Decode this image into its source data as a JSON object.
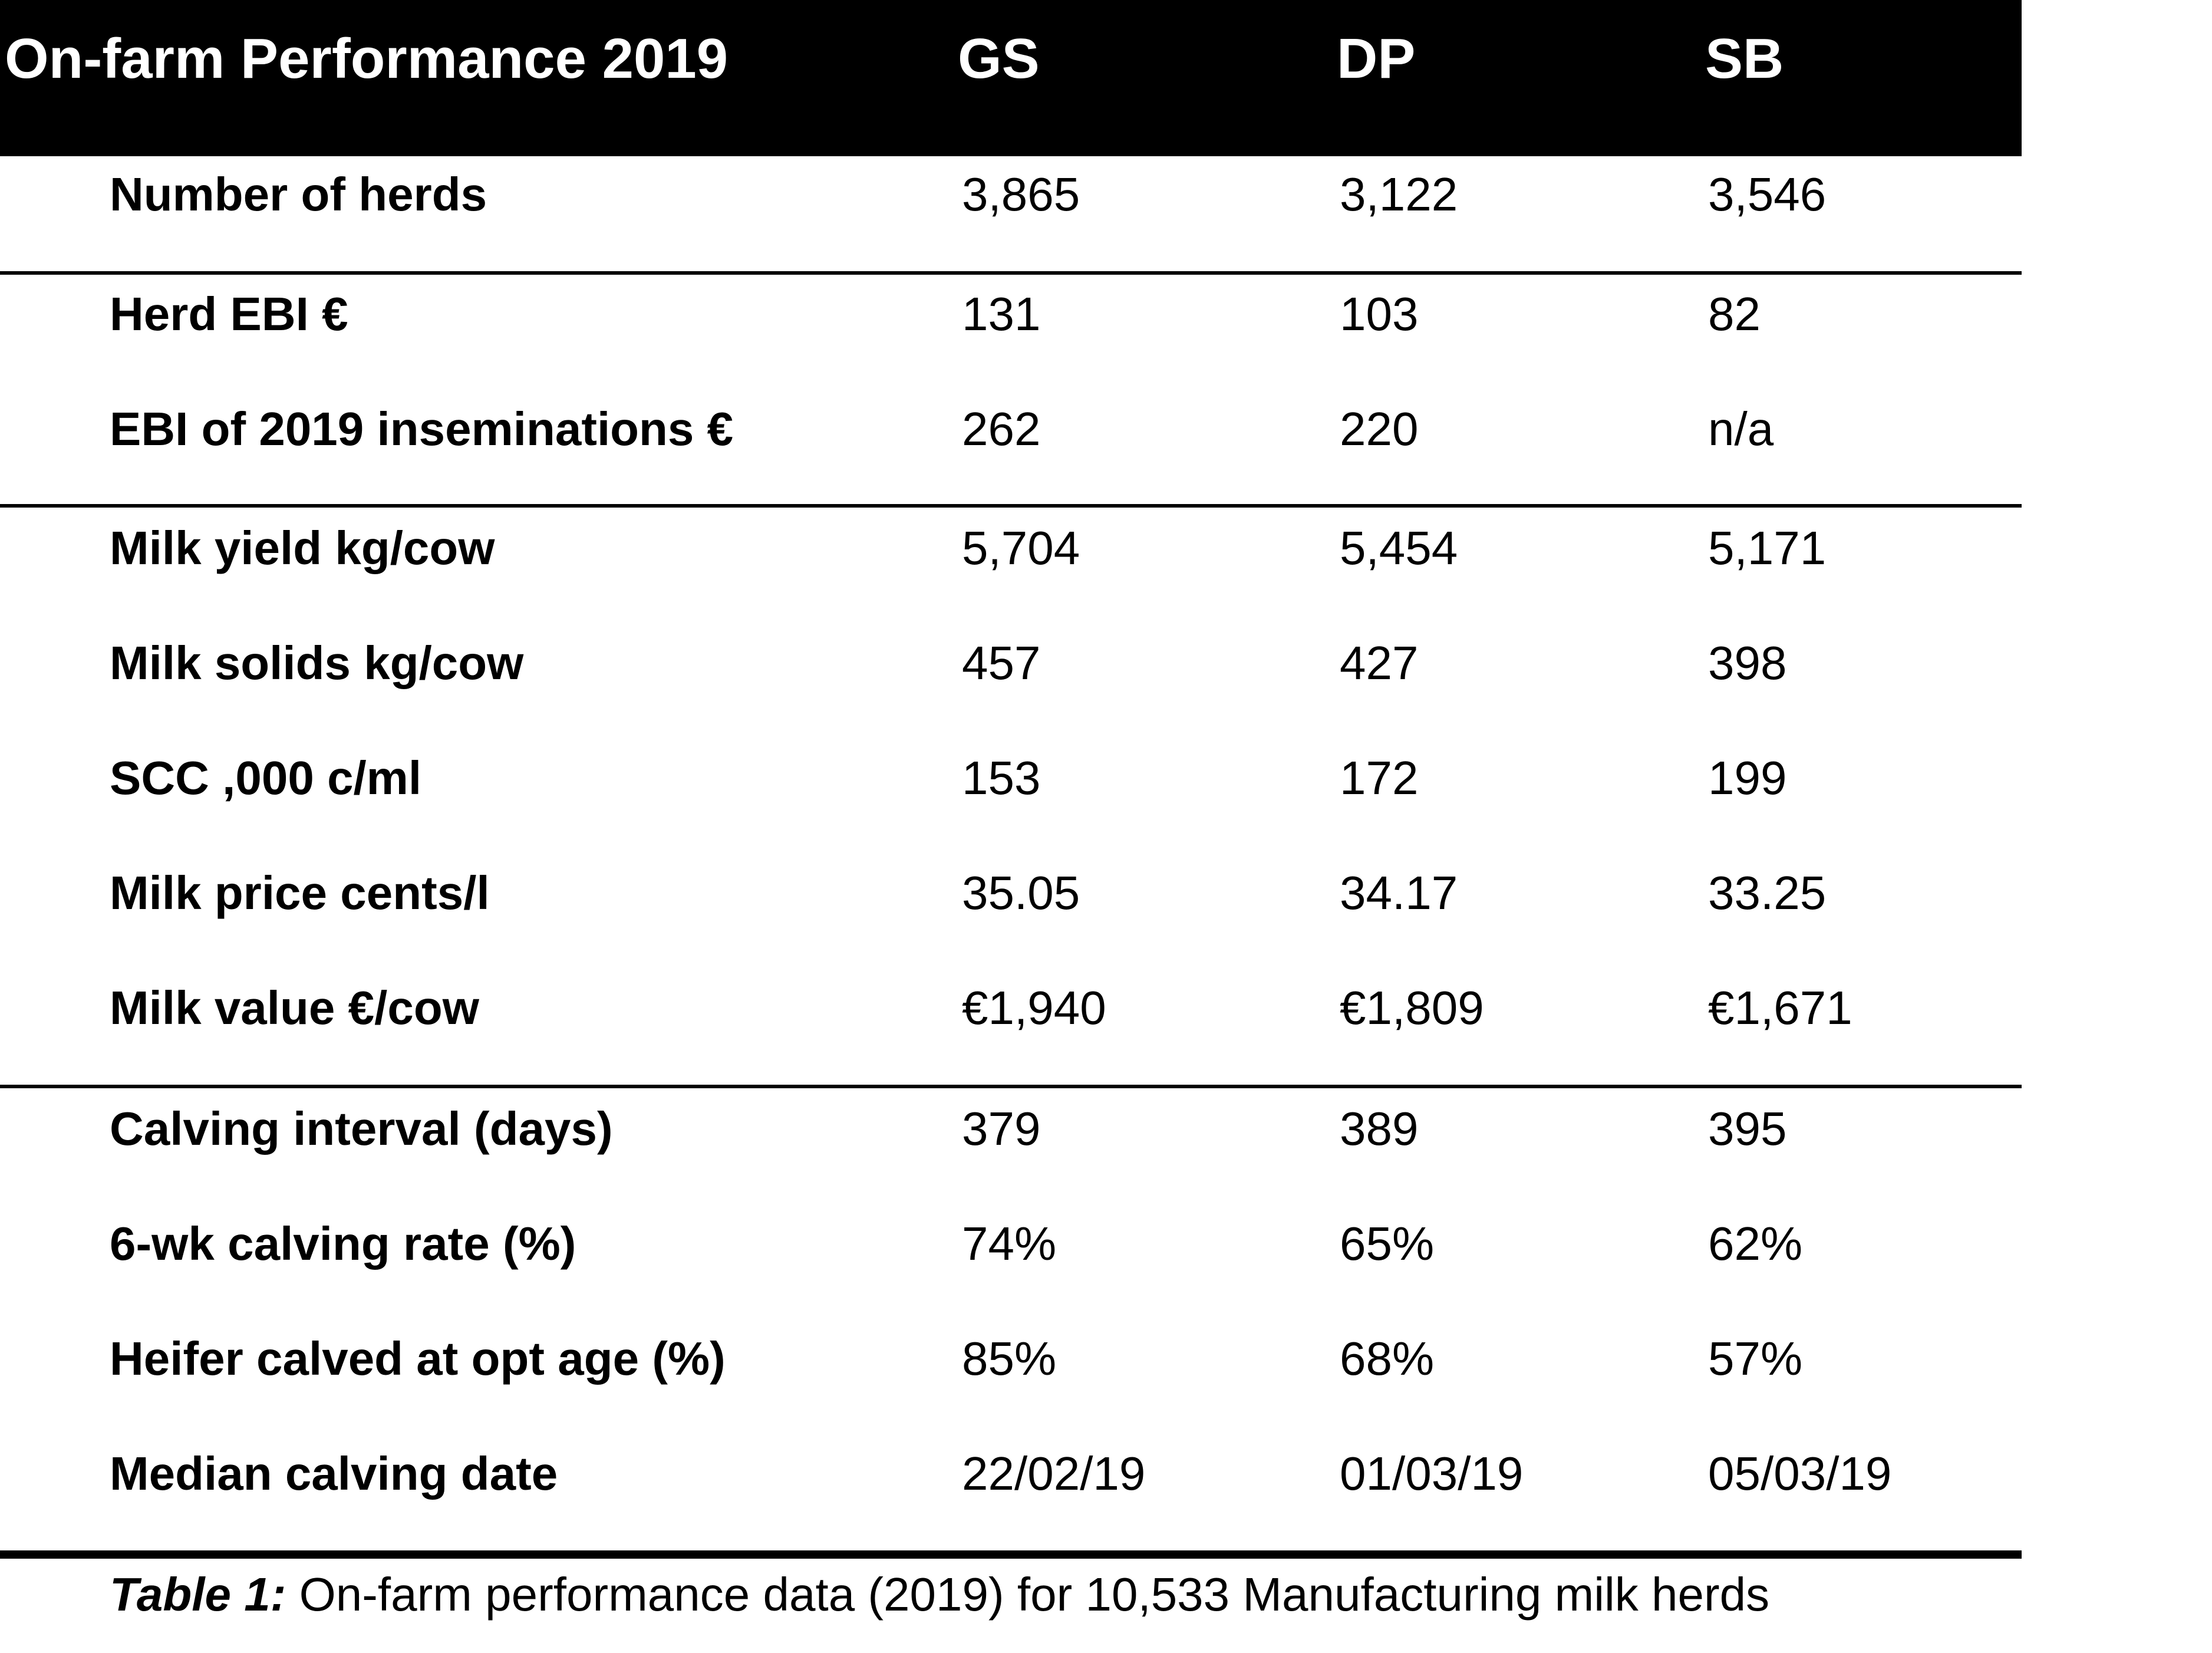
{
  "table": {
    "header": {
      "title": "On-farm Performance 2019",
      "columns": [
        "GS",
        "DP",
        "SB"
      ]
    },
    "rows": [
      {
        "label": "Number of herds",
        "gs": "3,865",
        "dp": "3,122",
        "sb": "3,546"
      },
      {
        "label": "Herd EBI €",
        "gs": "131",
        "dp": "103",
        "sb": "82"
      },
      {
        "label": "EBI of 2019 inseminations €",
        "gs": "262",
        "dp": "220",
        "sb": "n/a"
      },
      {
        "label": "Milk yield kg/cow",
        "gs": "5,704",
        "dp": "5,454",
        "sb": "5,171"
      },
      {
        "label": "Milk solids kg/cow",
        "gs": "457",
        "dp": "427",
        "sb": "398"
      },
      {
        "label": "SCC ,000 c/ml",
        "gs": "153",
        "dp": "172",
        "sb": "199"
      },
      {
        "label": "Milk price cents/l",
        "gs": "35.05",
        "dp": "34.17",
        "sb": "33.25"
      },
      {
        "label": "Milk value €/cow",
        "gs": "€1,940",
        "dp": "€1,809",
        "sb": "€1,671"
      },
      {
        "label": "Calving interval (days)",
        "gs": "379",
        "dp": "389",
        "sb": "395"
      },
      {
        "label": "6-wk calving rate (%)",
        "gs": "74%",
        "dp": "65%",
        "sb": "62%"
      },
      {
        "label": "Heifer calved at opt age (%)",
        "gs": "85%",
        "dp": "68%",
        "sb": "57%"
      },
      {
        "label": "Median calving date",
        "gs": "22/02/19",
        "dp": "01/03/19",
        "sb": "05/03/19"
      }
    ]
  },
  "caption": {
    "prefix": "Table 1:",
    "text": " On-farm performance data (2019) for 10,533 Manufacturing milk herds"
  }
}
